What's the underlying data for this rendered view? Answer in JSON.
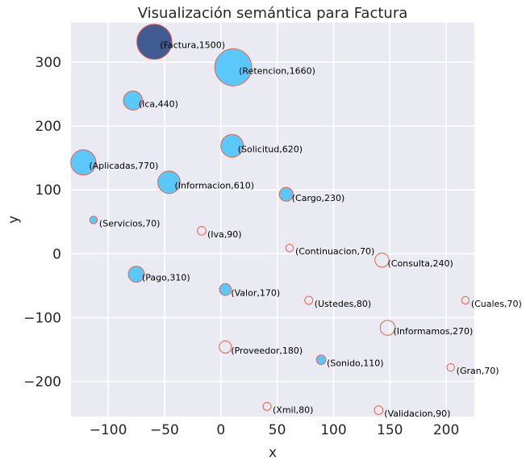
{
  "chart_data": {
    "type": "scatter",
    "title": "Visualización semántica para Factura",
    "xlabel": "x",
    "ylabel": "y",
    "xlim": [
      -133,
      225
    ],
    "ylim": [
      -255,
      362
    ],
    "xticks": [
      -100,
      -50,
      0,
      50,
      100,
      150,
      200
    ],
    "yticks": [
      -200,
      -100,
      0,
      100,
      200,
      300
    ],
    "xtick_labels": [
      "−100",
      "−50",
      "0",
      "50",
      "100",
      "150",
      "200"
    ],
    "ytick_labels": [
      "−200",
      "−100",
      "0",
      "100",
      "200",
      "300"
    ],
    "grid": true,
    "colors": {
      "background": "#EAEAF2",
      "grid": "#FFFFFF",
      "highlight_fill": "#3F5B92",
      "filled": "#5BC8FB",
      "edge": "#E8604C"
    },
    "points": [
      {
        "word": "Factura",
        "weight": 1500,
        "label": "(Factura,1500)",
        "x": -59,
        "y": 332,
        "style": "highlight"
      },
      {
        "word": "Retencion",
        "weight": 1660,
        "label": "(Retencion,1660)",
        "x": 11,
        "y": 292,
        "style": "filled"
      },
      {
        "word": "Ica",
        "weight": 440,
        "label": "(Ica,440)",
        "x": -78,
        "y": 240,
        "style": "filled"
      },
      {
        "word": "Solicitud",
        "weight": 620,
        "label": "(Solicitud,620)",
        "x": 10,
        "y": 169,
        "style": "filled"
      },
      {
        "word": "Aplicadas",
        "weight": 770,
        "label": "(Aplicadas,770)",
        "x": -122,
        "y": 143,
        "style": "filled"
      },
      {
        "word": "Informacion",
        "weight": 610,
        "label": "(Informacion,610)",
        "x": -46,
        "y": 112,
        "style": "filled"
      },
      {
        "word": "Cargo",
        "weight": 230,
        "label": "(Cargo,230)",
        "x": 58,
        "y": 93,
        "style": "filled"
      },
      {
        "word": "Servicios",
        "weight": 70,
        "label": "(Servicios,70)",
        "x": -113,
        "y": 53,
        "style": "filled"
      },
      {
        "word": "Iva",
        "weight": 90,
        "label": "(Iva,90)",
        "x": -17,
        "y": 36,
        "style": "hollow"
      },
      {
        "word": "Continuacion",
        "weight": 70,
        "label": "(Continuacion,70)",
        "x": 61,
        "y": 9,
        "style": "hollow"
      },
      {
        "word": "Consulta",
        "weight": 240,
        "label": "(Consulta,240)",
        "x": 143,
        "y": -10,
        "style": "hollow"
      },
      {
        "word": "Pago",
        "weight": 310,
        "label": "(Pago,310)",
        "x": -75,
        "y": -32,
        "style": "filled"
      },
      {
        "word": "Valor",
        "weight": 170,
        "label": "(Valor,170)",
        "x": 4,
        "y": -56,
        "style": "filled"
      },
      {
        "word": "Ustedes",
        "weight": 80,
        "label": "(Ustedes,80)",
        "x": 78,
        "y": -73,
        "style": "hollow"
      },
      {
        "word": "Cuales",
        "weight": 70,
        "label": "(Cuales,70)",
        "x": 217,
        "y": -73,
        "style": "hollow"
      },
      {
        "word": "Informamos",
        "weight": 270,
        "label": "(Informamos,270)",
        "x": 148,
        "y": -116,
        "style": "hollow"
      },
      {
        "word": "Proveedor",
        "weight": 180,
        "label": "(Proveedor,180)",
        "x": 4,
        "y": -146,
        "style": "hollow"
      },
      {
        "word": "Sonido",
        "weight": 110,
        "label": "(Sonido,110)",
        "x": 89,
        "y": -166,
        "style": "filled"
      },
      {
        "word": "Gran",
        "weight": 70,
        "label": "(Gran,70)",
        "x": 204,
        "y": -178,
        "style": "hollow"
      },
      {
        "word": "Xmil",
        "weight": 80,
        "label": "(Xmil,80)",
        "x": 41,
        "y": -239,
        "style": "hollow"
      },
      {
        "word": "Validacion",
        "weight": 90,
        "label": "(Validacion,90)",
        "x": 140,
        "y": -245,
        "style": "hollow"
      }
    ]
  }
}
